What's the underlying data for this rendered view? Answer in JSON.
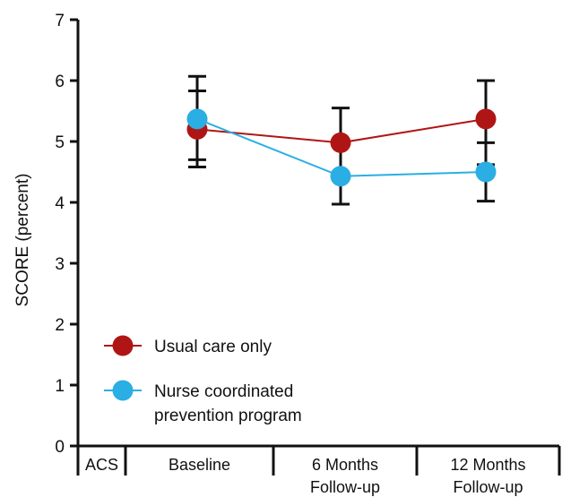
{
  "chart_data": {
    "type": "line",
    "title": "",
    "ylabel": "SCORE (percent)",
    "xlabel": "",
    "ylim": [
      0,
      7
    ],
    "yticks": [
      0,
      1,
      2,
      3,
      4,
      5,
      6,
      7
    ],
    "categories": [
      {
        "lines": [
          "ACS"
        ]
      },
      {
        "lines": [
          "Baseline"
        ]
      },
      {
        "lines": [
          "6 Months",
          "Follow-up"
        ]
      },
      {
        "lines": [
          "12 Months",
          "Follow-up"
        ]
      }
    ],
    "series": [
      {
        "name": "Usual care only",
        "color": "#b01515",
        "points": [
          {
            "category": 1,
            "y": 5.2,
            "err_low": 4.58,
            "err_high": 5.83
          },
          {
            "category": 2,
            "y": 4.98,
            "err_low": 4.45,
            "err_high": 5.55
          },
          {
            "category": 3,
            "y": 5.37,
            "err_low": 4.62,
            "err_high": 6.0
          }
        ]
      },
      {
        "name": "Nurse coordinated prevention program",
        "name_lines": [
          "Nurse coordinated",
          "prevention program"
        ],
        "color": "#2aaee3",
        "points": [
          {
            "category": 1,
            "y": 5.37,
            "err_low": 4.7,
            "err_high": 6.07
          },
          {
            "category": 2,
            "y": 4.43,
            "err_low": 3.97,
            "err_high": 4.95
          },
          {
            "category": 3,
            "y": 4.5,
            "err_low": 4.02,
            "err_high": 4.98
          }
        ]
      }
    ],
    "grid": false,
    "legend_position": "bottom-left"
  }
}
